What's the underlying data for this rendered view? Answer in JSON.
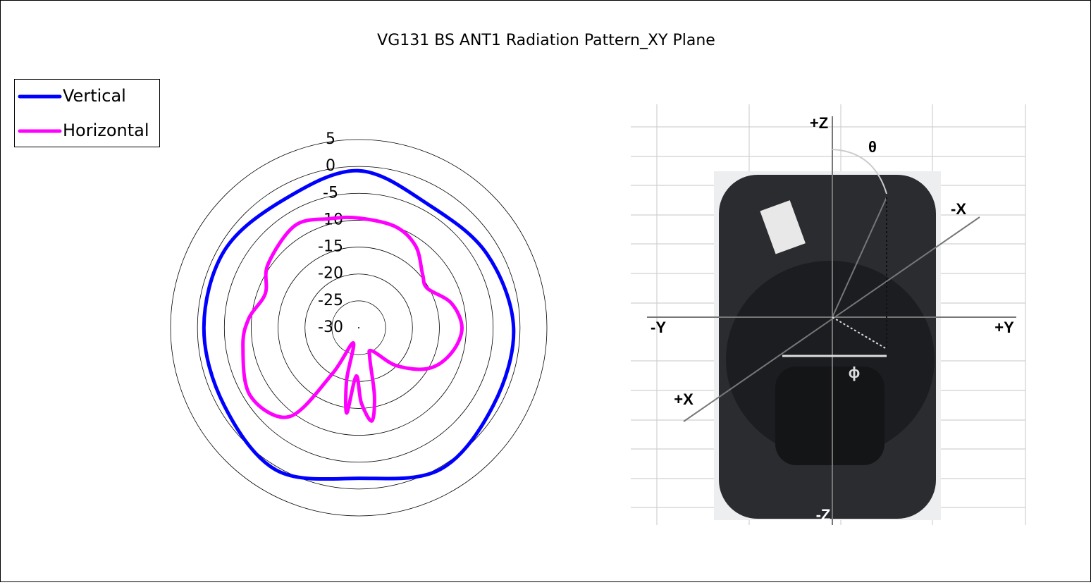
{
  "chart_data": {
    "type": "polar",
    "title": "VG131 BS ANT1 Radiation Pattern_XY Plane",
    "rlim": [
      -30,
      5
    ],
    "rticks": [
      -30,
      -25,
      -20,
      -15,
      -10,
      -5,
      0,
      5
    ],
    "grid": true,
    "legend": "upper left",
    "series": [
      {
        "name": "Vertical",
        "color": "#0000ff",
        "x": [
          0,
          30,
          60,
          90,
          120,
          150,
          180,
          210,
          240,
          270,
          300,
          330
        ],
        "values": [
          -0.8,
          -3.7,
          -2.5,
          -1.2,
          -1.1,
          0.4,
          -2.0,
          0.6,
          -1.1,
          -1.2,
          -1.2,
          -2.4
        ]
      },
      {
        "name": "Horizontal",
        "color": "#ff00ff",
        "x": [
          0,
          20,
          35,
          50,
          60,
          75,
          90,
          105,
          120,
          135,
          150,
          160,
          167,
          172,
          178,
          183,
          188,
          193,
          200,
          210,
          218,
          238,
          261,
          275,
          290,
          305,
          328,
          345
        ],
        "values": [
          -9.6,
          -10.0,
          -11.5,
          -14.5,
          -15.3,
          -12.2,
          -10.8,
          -12.1,
          -14.9,
          -20,
          -25,
          -24,
          -17,
          -12.5,
          -16,
          -21,
          -14,
          -20,
          -27,
          -20,
          -9,
          -6.2,
          -8.2,
          -9.5,
          -11.5,
          -9.4,
          -7.6,
          -9.0
        ]
      }
    ]
  },
  "image": {
    "labels": {
      "pz": "+Z",
      "theta": "θ",
      "mx": "-X",
      "my": "-Y",
      "py": "+Y",
      "px": "+X",
      "mz": "-Z",
      "phi": "ϕ"
    }
  }
}
